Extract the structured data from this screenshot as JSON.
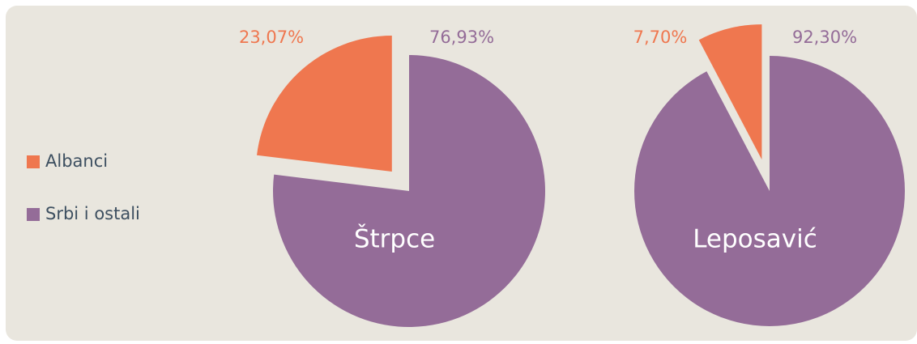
{
  "legend": [
    {
      "name": "Albanci",
      "color": "#ef774f"
    },
    {
      "name": "Srbi i ostali",
      "color": "#946c98"
    }
  ],
  "chart_data": [
    {
      "type": "pie",
      "title": "Štrpce",
      "values": [
        23.07,
        76.93
      ],
      "value_labels": [
        "23,07%",
        "76,93%"
      ]
    },
    {
      "type": "pie",
      "title": "Leposavić",
      "values": [
        7.7,
        92.3
      ],
      "value_labels": [
        "7,70%",
        "92,30%"
      ]
    }
  ]
}
